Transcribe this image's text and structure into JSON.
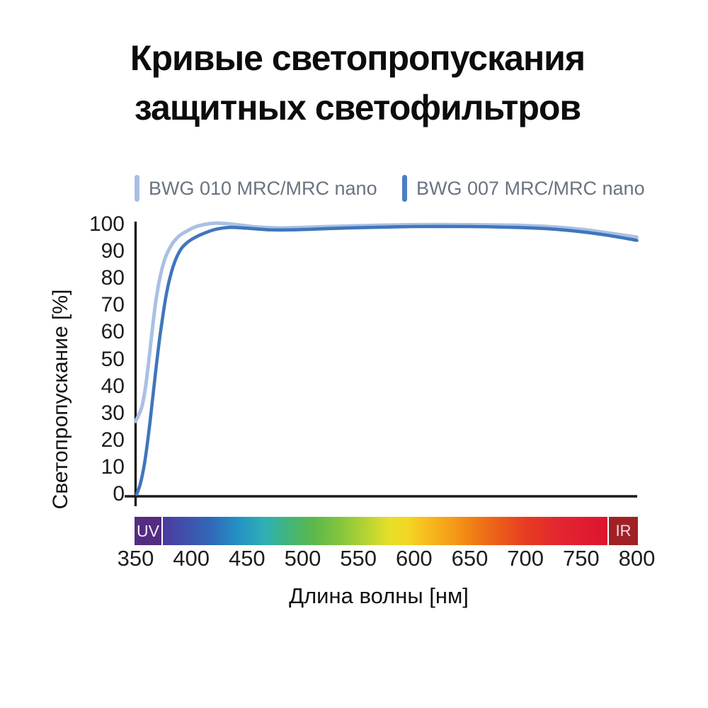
{
  "title": {
    "line1": "Кривые светопропускания",
    "line2": "защитных светофильтров"
  },
  "legend": {
    "items": [
      {
        "label": "BWG 010 MRC/MRC nano",
        "color": "#a9c0e3"
      },
      {
        "label": "BWG 007 MRC/MRC nano",
        "color": "#4a80c4"
      }
    ]
  },
  "chart_data": {
    "type": "line",
    "title": "Кривые светопропускания защитных светофильтров",
    "xlabel": "Длина волны [нм]",
    "ylabel": "Светопропускание [%]",
    "xlim": [
      350,
      800
    ],
    "ylim": [
      0,
      100
    ],
    "x_ticks": [
      350,
      400,
      450,
      500,
      550,
      600,
      650,
      700,
      750,
      800
    ],
    "y_ticks": [
      0,
      10,
      20,
      30,
      40,
      50,
      60,
      70,
      80,
      90,
      100
    ],
    "grid": false,
    "legend_position": "top",
    "axis_color": "#1c1c1c",
    "series": [
      {
        "name": "BWG 010 MRC/MRC nano",
        "color": "#a9c0e3",
        "points": [
          [
            350,
            27
          ],
          [
            353,
            29.5
          ],
          [
            356,
            33
          ],
          [
            359,
            40
          ],
          [
            362,
            50
          ],
          [
            365,
            61
          ],
          [
            368,
            71
          ],
          [
            371,
            78.5
          ],
          [
            374,
            84
          ],
          [
            377,
            88
          ],
          [
            381,
            91.5
          ],
          [
            385,
            94
          ],
          [
            390,
            96
          ],
          [
            396,
            97.5
          ],
          [
            403,
            99
          ],
          [
            412,
            100
          ],
          [
            422,
            100.5
          ],
          [
            432,
            100.3
          ],
          [
            445,
            99.7
          ],
          [
            460,
            99
          ],
          [
            480,
            98.7
          ],
          [
            500,
            98.9
          ],
          [
            530,
            99.3
          ],
          [
            560,
            99.6
          ],
          [
            600,
            99.9
          ],
          [
            650,
            99.9
          ],
          [
            690,
            99.7
          ],
          [
            720,
            99.2
          ],
          [
            750,
            98.2
          ],
          [
            775,
            96.8
          ],
          [
            800,
            95.3
          ]
        ]
      },
      {
        "name": "BWG 007 MRC/MRC nano",
        "color": "#3f76bc",
        "points": [
          [
            351,
            0
          ],
          [
            354,
            3.5
          ],
          [
            357,
            9
          ],
          [
            360,
            17
          ],
          [
            363,
            27
          ],
          [
            366,
            38
          ],
          [
            369,
            49
          ],
          [
            372,
            59
          ],
          [
            375,
            67.5
          ],
          [
            378,
            75
          ],
          [
            382,
            82
          ],
          [
            386,
            87
          ],
          [
            391,
            91
          ],
          [
            397,
            93.5
          ],
          [
            404,
            95.3
          ],
          [
            412,
            96.8
          ],
          [
            422,
            98.2
          ],
          [
            435,
            98.9
          ],
          [
            450,
            98.6
          ],
          [
            470,
            98
          ],
          [
            490,
            98
          ],
          [
            520,
            98.4
          ],
          [
            550,
            98.8
          ],
          [
            600,
            99.2
          ],
          [
            650,
            99.2
          ],
          [
            690,
            98.9
          ],
          [
            720,
            98.4
          ],
          [
            750,
            97.3
          ],
          [
            775,
            95.9
          ],
          [
            800,
            94.1
          ]
        ]
      }
    ],
    "spectrum_bar": {
      "uv_label": "UV",
      "ir_label": "IR",
      "uv_color": "#542c82",
      "ir_color": "#a02125",
      "gradient_stops": [
        [
          "#4a3aa0",
          0
        ],
        [
          "#4150ab",
          5
        ],
        [
          "#2f6ab8",
          11
        ],
        [
          "#2492c4",
          17
        ],
        [
          "#2fb0b4",
          23
        ],
        [
          "#45b573",
          29
        ],
        [
          "#5cb84b",
          34
        ],
        [
          "#85c53e",
          40
        ],
        [
          "#b8d432",
          46
        ],
        [
          "#e6e02a",
          51
        ],
        [
          "#f3d723",
          55
        ],
        [
          "#f6b81d",
          60
        ],
        [
          "#f59c18",
          65
        ],
        [
          "#f07d15",
          70
        ],
        [
          "#ec5a1b",
          76
        ],
        [
          "#e73a22",
          82
        ],
        [
          "#e22430",
          90
        ],
        [
          "#dd1430",
          100
        ]
      ]
    }
  }
}
